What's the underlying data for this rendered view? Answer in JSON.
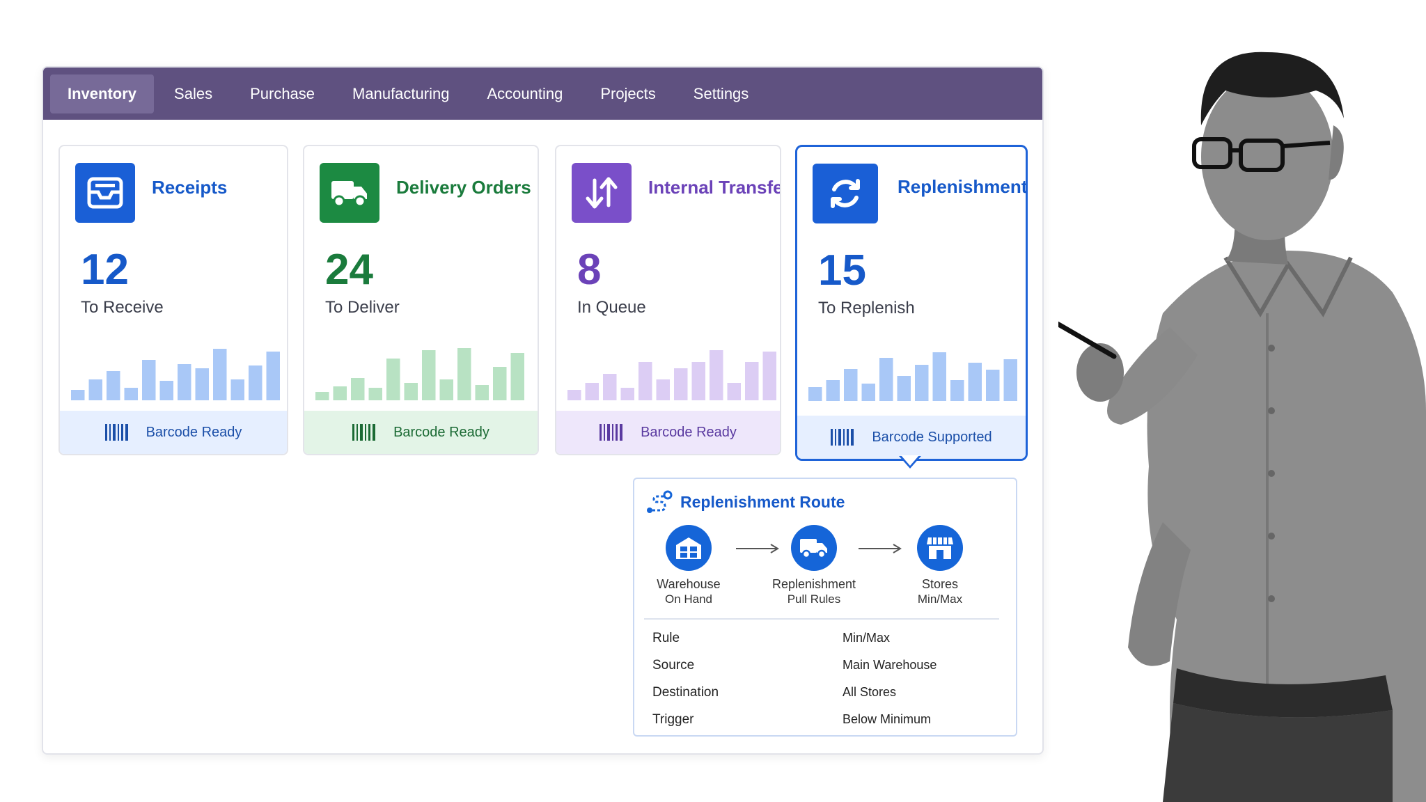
{
  "nav": {
    "items": [
      {
        "label": "Inventory",
        "active": true
      },
      {
        "label": "Sales"
      },
      {
        "label": "Purchase"
      },
      {
        "label": "Manufacturing"
      },
      {
        "label": "Accounting"
      },
      {
        "label": "Projects"
      },
      {
        "label": "Settings"
      }
    ]
  },
  "cards": [
    {
      "title": "Receipts",
      "count": "12",
      "subtitle": "To Receive",
      "footer": "Barcode Ready",
      "icon": "inbox-tray-icon",
      "color": "#1a5fd6",
      "bar_color": "#a9c8f7",
      "bars": [
        0.15,
        0.3,
        0.42,
        0.18,
        0.58,
        0.28,
        0.52,
        0.46,
        0.74,
        0.3,
        0.5,
        0.7
      ]
    },
    {
      "title": "Delivery Orders",
      "count": "24",
      "subtitle": "To Deliver",
      "footer": "Barcode Ready",
      "icon": "delivery-truck-icon",
      "color": "#1c8a42",
      "bar_color": "#b8e2c3",
      "bars": [
        0.12,
        0.2,
        0.32,
        0.18,
        0.6,
        0.25,
        0.72,
        0.3,
        0.75,
        0.22,
        0.48,
        0.68
      ]
    },
    {
      "title": "Internal Transfers",
      "count": "8",
      "subtitle": "In Queue",
      "footer": "Barcode Ready",
      "icon": "transfer-arrows-icon",
      "color": "#7a4fc9",
      "bar_color": "#dccdf4",
      "bars": [
        0.15,
        0.25,
        0.38,
        0.18,
        0.55,
        0.3,
        0.46,
        0.55,
        0.72,
        0.25,
        0.55,
        0.7
      ]
    },
    {
      "title": "Replenishment",
      "count": "15",
      "subtitle": "To Replenish",
      "footer": "Barcode Supported",
      "icon": "refresh-cycle-icon",
      "color": "#1a5fd6",
      "bar_color": "#a9c8f7",
      "bars": [
        0.2,
        0.3,
        0.46,
        0.25,
        0.62,
        0.36,
        0.52,
        0.7,
        0.3,
        0.55,
        0.45,
        0.6
      ]
    }
  ],
  "route": {
    "title": "Replenishment Route",
    "nodes": [
      {
        "label": "Warehouse",
        "sub": "On Hand",
        "icon": "warehouse-icon"
      },
      {
        "label": "Replenishment",
        "sub": "Pull Rules",
        "icon": "truck-icon"
      },
      {
        "label": "Stores",
        "sub": "Min/Max",
        "icon": "storefront-icon"
      }
    ],
    "rules": [
      {
        "key": "Rule",
        "value": "Min/Max"
      },
      {
        "key": "Source",
        "value": "Main Warehouse"
      },
      {
        "key": "Destination",
        "value": "All Stores"
      },
      {
        "key": "Trigger",
        "value": "Below Minimum"
      }
    ]
  }
}
